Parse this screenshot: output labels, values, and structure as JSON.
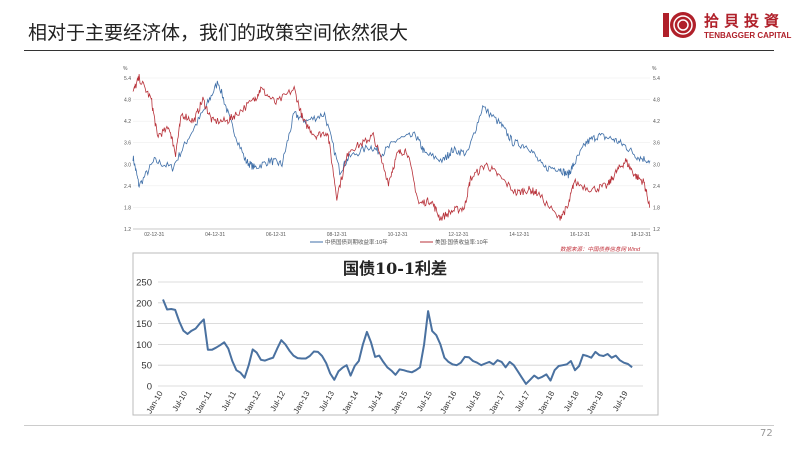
{
  "slide": {
    "title": "相对于主要经济体，我们的政策空间依然很大",
    "page_number": "72",
    "logo": {
      "name_cn": "拾貝投資",
      "name_en": "TENBAGGER CAPITAL",
      "color": "#b0202a"
    }
  },
  "chart_data": [
    {
      "type": "line",
      "unit_left": "%",
      "unit_right": "%",
      "y_ticks": [
        1.2,
        1.8,
        2.4,
        3.0,
        3.6,
        4.2,
        4.8,
        5.4
      ],
      "ylim": [
        1.2,
        5.4
      ],
      "x_tick_labels": [
        "02-12-31",
        "04-12-31",
        "06-12-31",
        "08-12-31",
        "10-12-31",
        "12-12-31",
        "14-12-31",
        "16-12-31",
        "18-12-31"
      ],
      "xlim": [
        2002.3,
        2019.3
      ],
      "grid": true,
      "legend_position": "bottom",
      "source": "数据来源：中国债券信息网 Wind",
      "series": [
        {
          "name": "中债国债到期收益率:10年",
          "color": "#3f6fa8",
          "x": [
            2002.3,
            2002.5,
            2003.0,
            2003.6,
            2004.1,
            2004.7,
            2005.1,
            2005.5,
            2006.0,
            2006.3,
            2006.8,
            2007.2,
            2007.6,
            2008.0,
            2008.6,
            2009.1,
            2009.4,
            2010.1,
            2010.5,
            2011.0,
            2011.6,
            2011.9,
            2012.5,
            2012.8,
            2013.3,
            2013.8,
            2014.4,
            2014.8,
            2015.3,
            2015.8,
            2016.3,
            2016.6,
            2016.8,
            2017.2,
            2017.6,
            2018.1,
            2018.5,
            2018.9,
            2019.3
          ],
          "y": [
            3.2,
            2.4,
            3.1,
            2.9,
            3.7,
            4.6,
            5.3,
            4.2,
            3.1,
            2.9,
            3.1,
            3.0,
            4.4,
            4.2,
            4.4,
            2.8,
            3.2,
            3.5,
            3.3,
            3.7,
            3.8,
            3.3,
            3.1,
            3.4,
            3.3,
            4.6,
            4.1,
            3.6,
            3.5,
            2.9,
            2.9,
            2.7,
            3.0,
            3.6,
            3.8,
            3.7,
            3.5,
            3.2,
            3.1
          ]
        },
        {
          "name": "美国:国债收益率:10年",
          "color": "#b8323a",
          "x": [
            2002.3,
            2002.5,
            2002.9,
            2003.1,
            2003.5,
            2003.7,
            2003.9,
            2004.3,
            2004.6,
            2004.9,
            2005.4,
            2005.7,
            2006.3,
            2006.5,
            2007.0,
            2007.6,
            2007.9,
            2008.3,
            2008.7,
            2009.0,
            2009.4,
            2009.9,
            2010.2,
            2010.7,
            2011.0,
            2011.3,
            2011.7,
            2012.1,
            2012.4,
            2012.8,
            2013.2,
            2013.4,
            2013.9,
            2014.3,
            2014.9,
            2015.3,
            2015.6,
            2016.3,
            2016.6,
            2016.8,
            2017.4,
            2017.9,
            2018.2,
            2018.5,
            2018.8,
            2019.1,
            2019.3
          ],
          "y": [
            5.0,
            5.4,
            4.8,
            3.8,
            4.0,
            3.3,
            4.4,
            4.2,
            4.8,
            4.2,
            4.2,
            4.4,
            4.8,
            5.1,
            4.7,
            5.1,
            4.2,
            3.8,
            3.9,
            2.1,
            3.4,
            3.6,
            3.8,
            2.5,
            3.3,
            3.4,
            1.9,
            2.0,
            1.5,
            1.7,
            1.8,
            2.6,
            3.0,
            2.7,
            2.2,
            2.3,
            2.2,
            1.5,
            1.8,
            2.5,
            2.3,
            2.4,
            2.8,
            3.1,
            2.7,
            2.5,
            1.8
          ]
        }
      ]
    },
    {
      "type": "line",
      "title": "国债10-1利差",
      "y_ticks": [
        0,
        50,
        100,
        150,
        200,
        250
      ],
      "ylim": [
        0,
        250
      ],
      "grid": true,
      "x_tick_labels": [
        "Jan-10",
        "Jul-10",
        "Jan-11",
        "Jul-11",
        "Jan-12",
        "Jul-12",
        "Jan-13",
        "Jul-13",
        "Jan-14",
        "Jul-14",
        "Jan-15",
        "Jul-15",
        "Jan-16",
        "Jul-16",
        "Jan-17",
        "Jul-17",
        "Jan-18",
        "Jul-18",
        "Jan-19",
        "Jul-19"
      ],
      "x_start": "Jan-10",
      "x_frequency": "monthly",
      "series": [
        {
          "color": "#4a71a0",
          "values": [
            208,
            184,
            185,
            183,
            155,
            133,
            125,
            133,
            138,
            150,
            160,
            87,
            87,
            92,
            98,
            105,
            90,
            60,
            38,
            32,
            20,
            50,
            88,
            80,
            63,
            61,
            65,
            68,
            90,
            110,
            100,
            85,
            73,
            67,
            66,
            66,
            72,
            83,
            82,
            72,
            55,
            30,
            15,
            35,
            44,
            50,
            25,
            48,
            60,
            100,
            130,
            105,
            70,
            73,
            58,
            45,
            37,
            27,
            40,
            38,
            35,
            33,
            38,
            45,
            100,
            180,
            132,
            122,
            100,
            68,
            58,
            52,
            50,
            56,
            70,
            69,
            60,
            56,
            50,
            54,
            58,
            52,
            62,
            58,
            45,
            58,
            50,
            35,
            20,
            5,
            15,
            25,
            18,
            22,
            28,
            13,
            38,
            48,
            50,
            52,
            60,
            38,
            48,
            75,
            72,
            68,
            82,
            74,
            72,
            77,
            68,
            73,
            62,
            56,
            53,
            45
          ]
        }
      ]
    }
  ]
}
